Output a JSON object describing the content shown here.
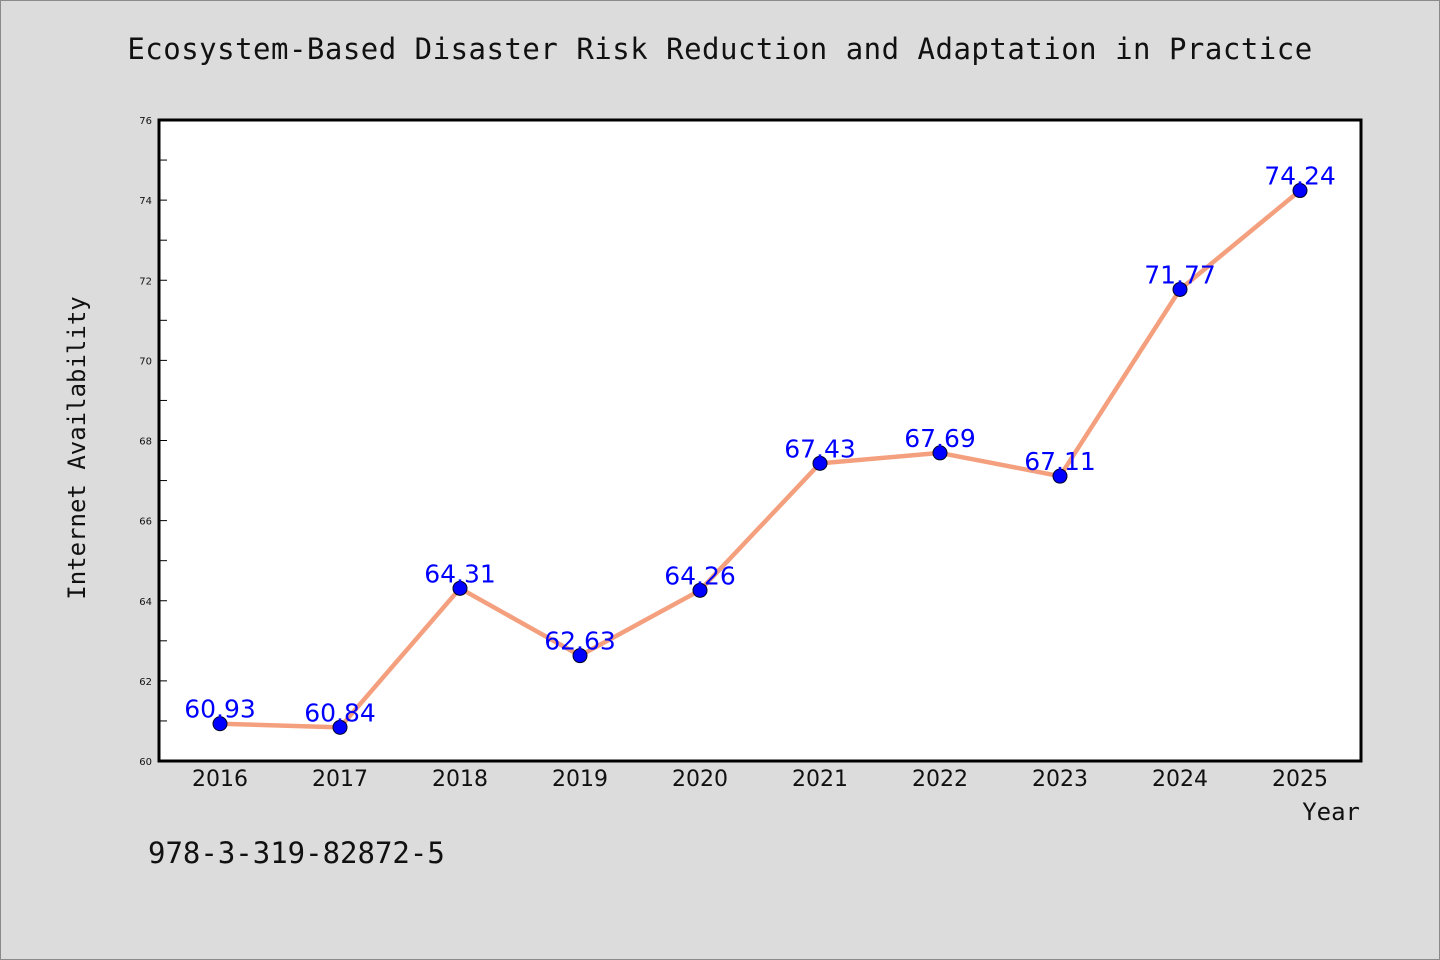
{
  "chart_data": {
    "type": "line",
    "title": "Ecosystem-Based Disaster Risk Reduction and Adaptation in Practice",
    "xlabel": "Year",
    "ylabel": "Internet Availability",
    "categories": [
      "2016",
      "2017",
      "2018",
      "2019",
      "2020",
      "2021",
      "2022",
      "2023",
      "2024",
      "2025"
    ],
    "series": [
      {
        "values": [
          60.93,
          60.84,
          64.31,
          62.63,
          64.26,
          67.43,
          67.69,
          67.11,
          71.77,
          74.24
        ],
        "line_color": "#f4a07e",
        "marker_color": "#0000ff"
      }
    ],
    "data_labels": [
      "60.93",
      "60.84",
      "64.31",
      "62.63",
      "64.26",
      "67.43",
      "67.69",
      "67.11",
      "71.77",
      "74.24"
    ],
    "ylim": [
      60,
      76
    ],
    "yticks": [
      "60",
      "62",
      "64",
      "66",
      "68",
      "70",
      "72",
      "74",
      "76"
    ],
    "grid": false,
    "legend": "none"
  },
  "footer": {
    "isbn": "978-3-319-82872-5"
  },
  "colors": {
    "background": "#dcdcdc",
    "plot_background": "#ffffff",
    "line": "#f4a07e",
    "marker": "#0000ff",
    "label": "#0000ff"
  }
}
